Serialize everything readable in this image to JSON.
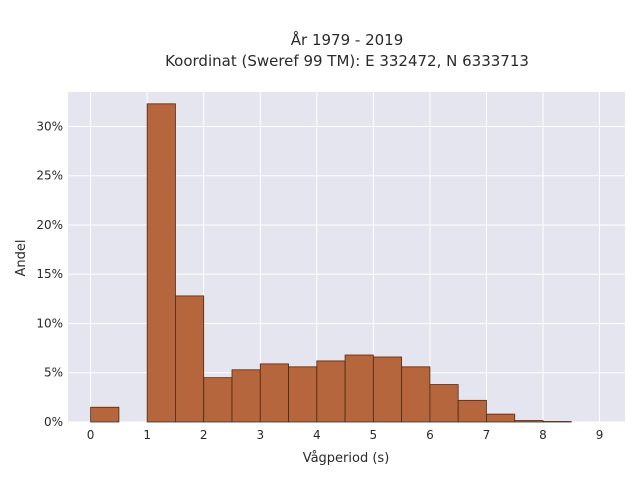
{
  "chart_data": {
    "type": "bar",
    "title_lines": [
      "År 1979 - 2019",
      "Koordinat (Sweref 99 TM): E 332472, N 6333713"
    ],
    "xlabel": "Vågperiod (s)",
    "ylabel": "Andel",
    "xlim": [
      -0.4,
      9.45
    ],
    "ylim": [
      0,
      33.5
    ],
    "x_ticks": [
      0,
      1,
      2,
      3,
      4,
      5,
      6,
      7,
      8,
      9
    ],
    "x_tick_labels": [
      "0",
      "1",
      "2",
      "3",
      "4",
      "5",
      "6",
      "7",
      "8",
      "9"
    ],
    "y_ticks": [
      0,
      5,
      10,
      15,
      20,
      25,
      30
    ],
    "y_tick_labels": [
      "0%",
      "5%",
      "10%",
      "15%",
      "20%",
      "25%",
      "30%"
    ],
    "bin_width": 0.5,
    "bins": [
      {
        "x0": 0.0,
        "value": 1.5
      },
      {
        "x0": 0.5,
        "value": 0.0
      },
      {
        "x0": 1.0,
        "value": 32.3
      },
      {
        "x0": 1.5,
        "value": 12.8
      },
      {
        "x0": 2.0,
        "value": 4.5
      },
      {
        "x0": 2.5,
        "value": 5.3
      },
      {
        "x0": 3.0,
        "value": 5.9
      },
      {
        "x0": 3.5,
        "value": 5.6
      },
      {
        "x0": 4.0,
        "value": 6.2
      },
      {
        "x0": 4.5,
        "value": 6.8
      },
      {
        "x0": 5.0,
        "value": 6.6
      },
      {
        "x0": 5.5,
        "value": 5.6
      },
      {
        "x0": 6.0,
        "value": 3.8
      },
      {
        "x0": 6.5,
        "value": 2.2
      },
      {
        "x0": 7.0,
        "value": 0.8
      },
      {
        "x0": 7.5,
        "value": 0.15
      },
      {
        "x0": 8.0,
        "value": 0.05
      }
    ],
    "grid": true,
    "colors": {
      "plot_background": "#e5e5ef",
      "bar_fill": "#b5663c",
      "bar_edge": "#4a2a18",
      "grid": "#ffffff"
    }
  }
}
